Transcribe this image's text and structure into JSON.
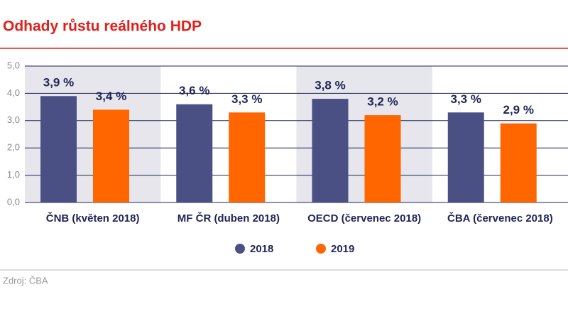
{
  "chart_data": {
    "type": "bar",
    "title": "Odhady růstu reálného HDP",
    "categories": [
      "ČNB (květen 2018)",
      "MF ČR (duben 2018)",
      "OECD (červenec 2018)",
      "ČBA (červenec 2018)"
    ],
    "series": [
      {
        "name": "2018",
        "color": "#4a5083",
        "values": [
          3.9,
          3.6,
          3.8,
          3.3
        ],
        "value_labels": [
          "3,9 %",
          "3,6 %",
          "3,8 %",
          "3,3 %"
        ]
      },
      {
        "name": "2019",
        "color": "#ff6600",
        "values": [
          3.4,
          3.3,
          3.2,
          2.9
        ],
        "value_labels": [
          "3,4 %",
          "3,3 %",
          "3,2 %",
          "2,9 %"
        ]
      }
    ],
    "ylim": [
      0,
      5
    ],
    "yticks": [
      {
        "value": 0,
        "label": "0,0"
      },
      {
        "value": 1,
        "label": "1,0"
      },
      {
        "value": 2,
        "label": "2,0"
      },
      {
        "value": 3,
        "label": "3,0"
      },
      {
        "value": 4,
        "label": "4,0"
      },
      {
        "value": 5,
        "label": "5,0"
      }
    ],
    "grid": true,
    "source": "Zdroj: ČBA"
  }
}
